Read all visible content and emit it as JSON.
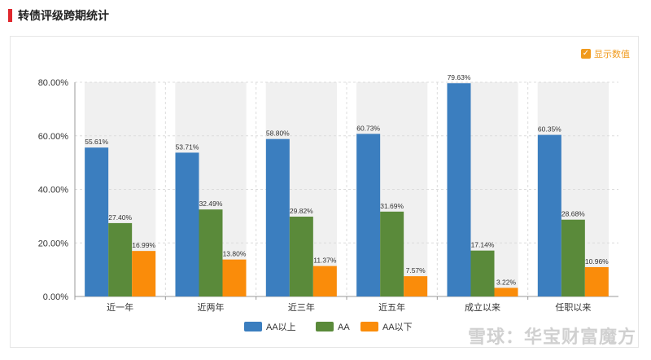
{
  "header": {
    "title": "转债评级跨期统计"
  },
  "toggle": {
    "label": "显示数值",
    "check": "✓"
  },
  "watermark": "雪球：华宝财富魔方",
  "colors": {
    "AA以上": "#3b7ebf",
    "AA": "#5a8a3a",
    "AA以下": "#fa8c0a",
    "band": "#f0f0f0"
  },
  "chart_data": {
    "type": "bar",
    "categories": [
      "近一年",
      "近两年",
      "近三年",
      "近五年",
      "成立以来",
      "任职以来"
    ],
    "series": [
      {
        "name": "AA以上",
        "values": [
          55.61,
          53.71,
          58.8,
          60.73,
          79.63,
          60.35
        ],
        "labels": [
          "55.61%",
          "53.71%",
          "58.80%",
          "60.73%",
          "79.63%",
          "60.35%"
        ]
      },
      {
        "name": "AA",
        "values": [
          27.4,
          32.49,
          29.82,
          31.69,
          17.14,
          28.68
        ],
        "labels": [
          "27.40%",
          "32.49%",
          "29.82%",
          "31.69%",
          "17.14%",
          "28.68%"
        ]
      },
      {
        "name": "AA以下",
        "values": [
          16.99,
          13.8,
          11.37,
          7.57,
          3.22,
          10.96
        ],
        "labels": [
          "16.99%",
          "13.80%",
          "11.37%",
          "7.57%",
          "3.22%",
          "10.96%"
        ]
      }
    ],
    "yticks": [
      0,
      20,
      40,
      60,
      80
    ],
    "ytick_labels": [
      "0.00%",
      "20.00%",
      "40.00%",
      "60.00%",
      "80.00%"
    ],
    "ylim": [
      0,
      80
    ],
    "legend_position": "bottom",
    "grid": true
  }
}
